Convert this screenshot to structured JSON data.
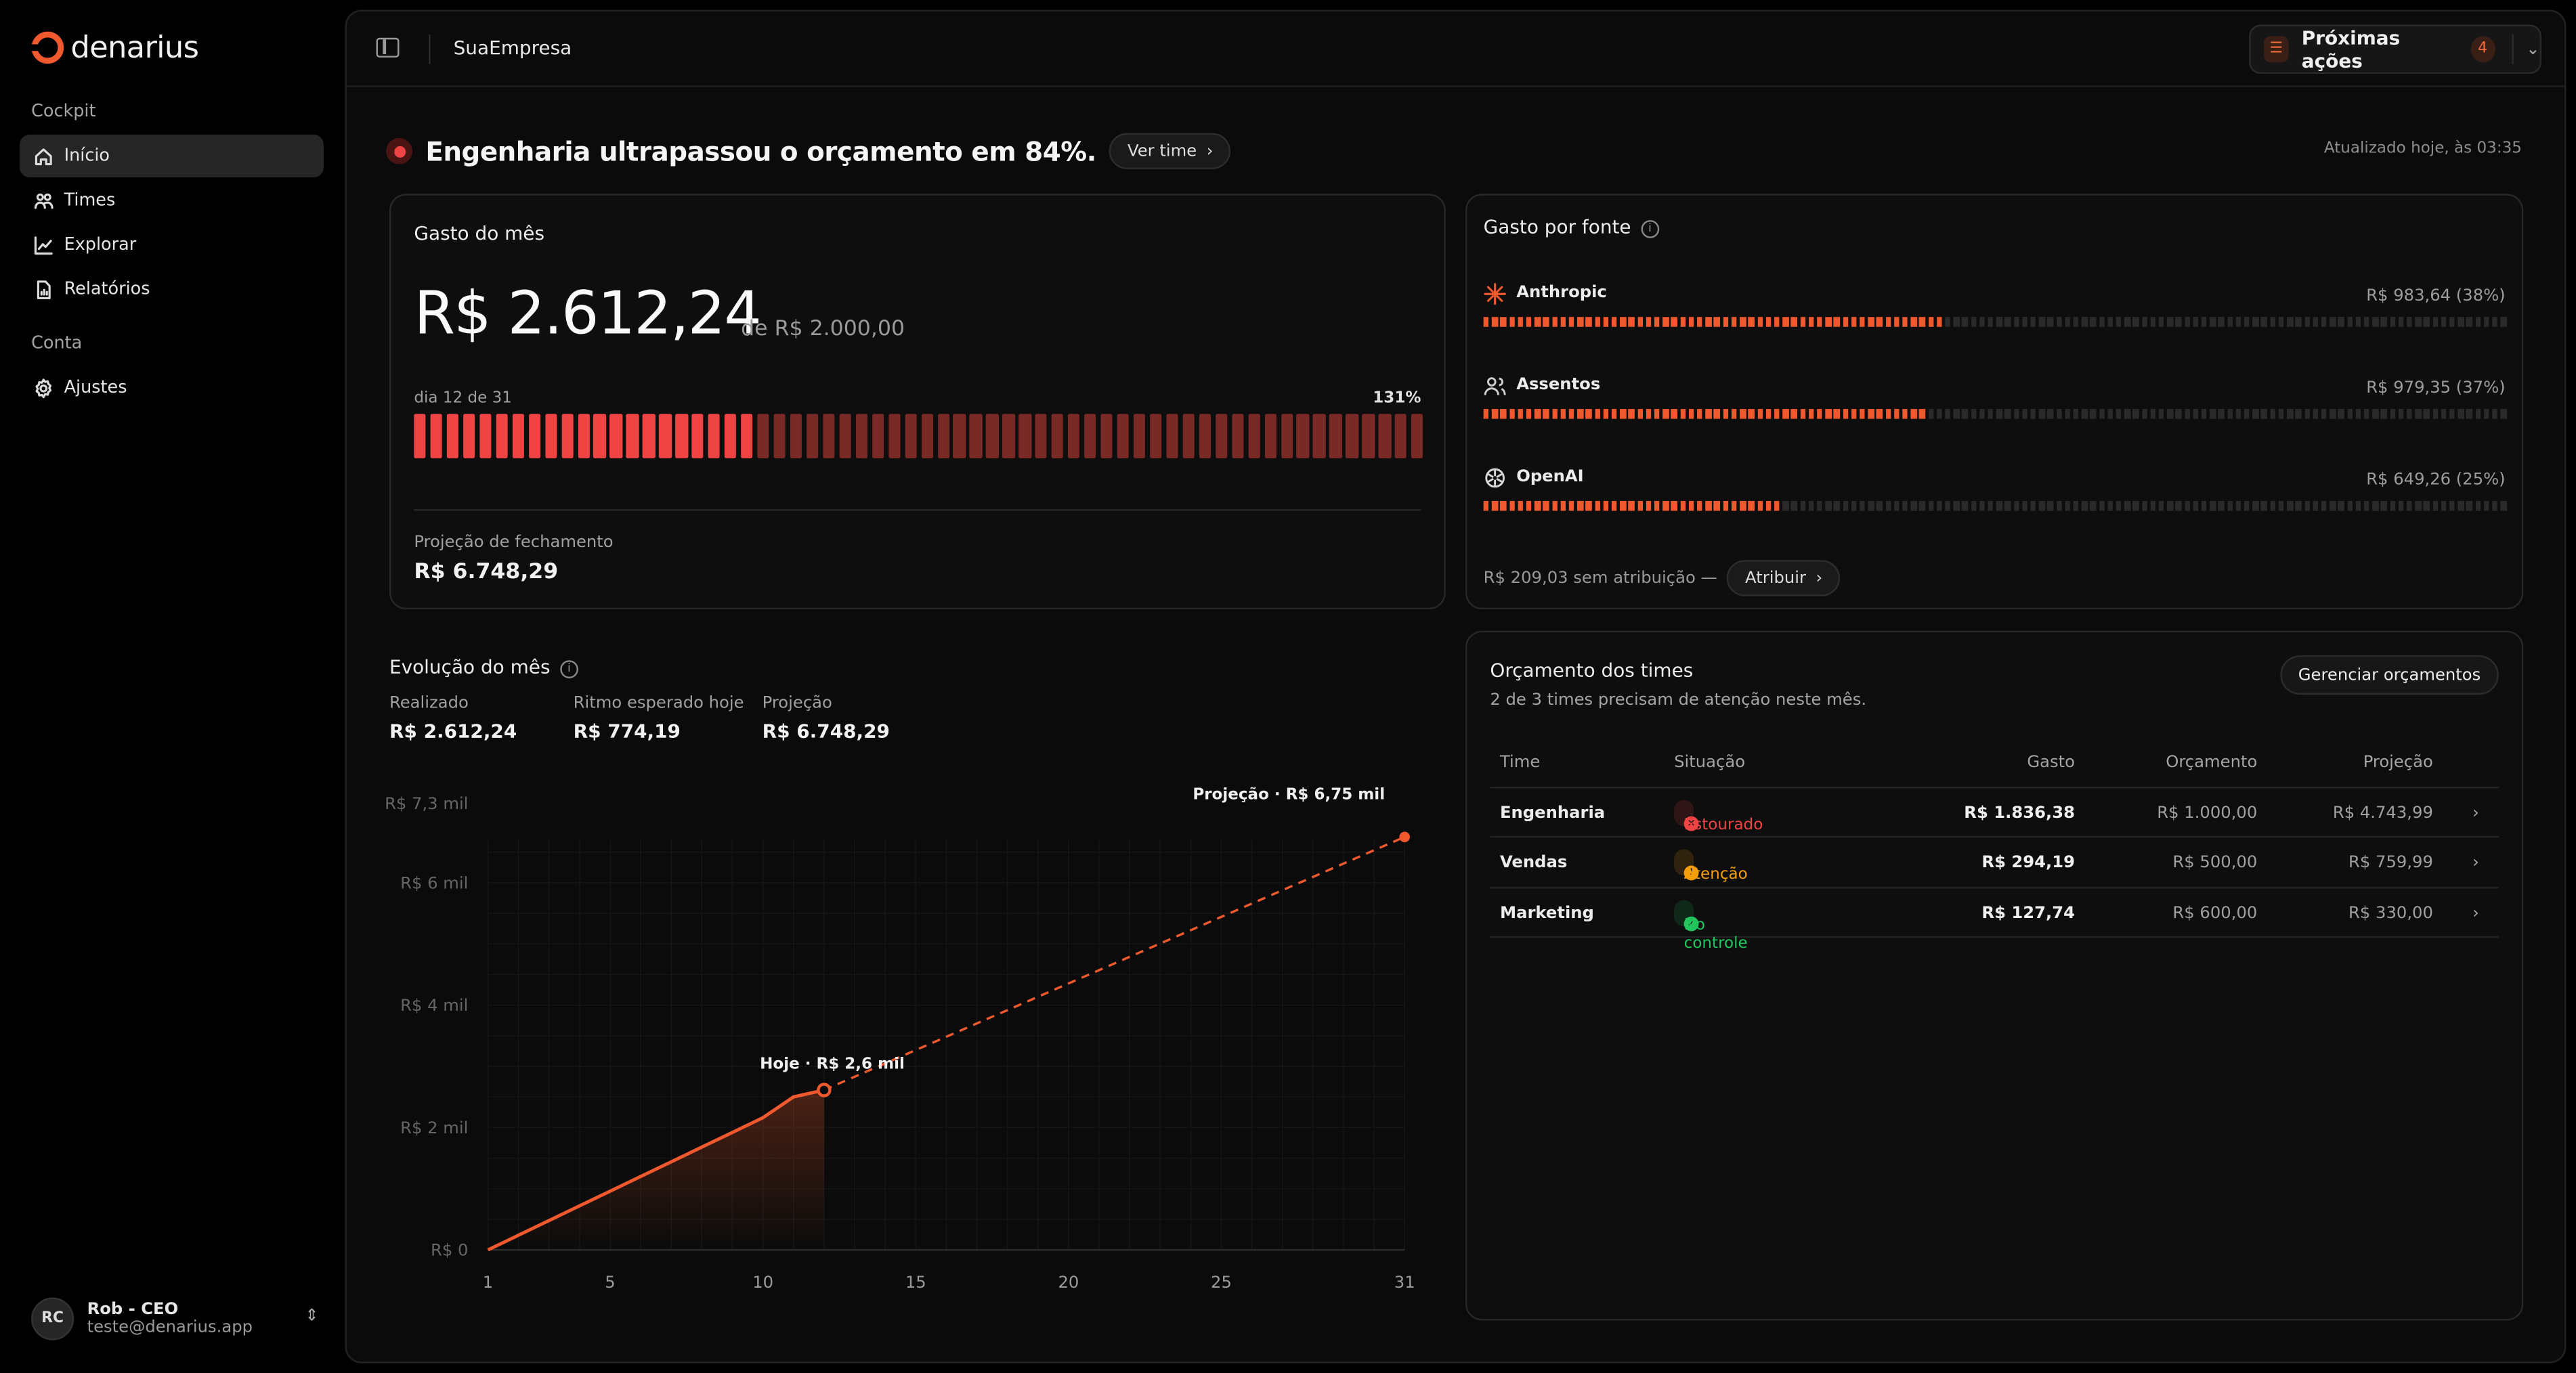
{
  "app": {
    "name": "denarius",
    "company": "SuaEmpresa"
  },
  "sidebar": {
    "section_cockpit": "Cockpit",
    "items": [
      {
        "label": "Início"
      },
      {
        "label": "Times"
      },
      {
        "label": "Explorar"
      },
      {
        "label": "Relatórios"
      }
    ],
    "section_conta": "Conta",
    "settings": {
      "label": "Ajustes"
    },
    "user": {
      "initials": "RC",
      "name": "Rob - CEO",
      "email": "teste@denarius.app"
    }
  },
  "topbar": {
    "next_actions_label": "Próximas ações",
    "next_actions_count": "4"
  },
  "alert": {
    "text": "Engenharia ultrapassou o orçamento em 84%.",
    "button": "Ver time",
    "updated": "Atualizado hoje, às 03:35"
  },
  "month_spend": {
    "title": "Gasto do mês",
    "value": "R$ 2.612,24",
    "budget": "de R$ 2.000,00",
    "day": "dia 12 de 31",
    "percent": "131%",
    "progress": 1.306,
    "projection_label": "Projeção de fechamento",
    "projection_value": "R$ 6.748,29"
  },
  "sources": {
    "title": "Gasto por fonte",
    "items": [
      {
        "name": "Anthropic",
        "value": "R$ 983,64 (38%)",
        "share": 0.38,
        "icon": "anthropic-icon"
      },
      {
        "name": "Assentos",
        "value": "R$ 979,35 (37%)",
        "share": 0.37,
        "icon": "users-icon"
      },
      {
        "name": "OpenAI",
        "value": "R$ 649,26 (25%)",
        "share": 0.25,
        "icon": "openai-icon"
      }
    ],
    "unattributed": "R$ 209,03 sem atribuição —",
    "assign_button": "Atribuir"
  },
  "evolution": {
    "title": "Evolução do mês",
    "kpis": [
      {
        "label": "Realizado",
        "value": "R$ 2.612,24"
      },
      {
        "label": "Ritmo esperado hoje",
        "value": "R$ 774,19"
      },
      {
        "label": "Projeção",
        "value": "R$ 6.748,29"
      }
    ]
  },
  "chart_data": {
    "type": "line",
    "x_ticks": [
      "1",
      "5",
      "10",
      "15",
      "20",
      "25",
      "31"
    ],
    "y_ticks": [
      "R$ 0",
      "R$ 2 mil",
      "R$ 4 mil",
      "R$ 6 mil",
      "R$ 7,3 mil"
    ],
    "xlim": [
      1,
      31
    ],
    "ylim": [
      0,
      7300
    ],
    "series": [
      {
        "name": "Realizado",
        "x": [
          1,
          2,
          3,
          4,
          5,
          6,
          7,
          8,
          9,
          10,
          11,
          12
        ],
        "y": [
          0,
          240,
          480,
          720,
          960,
          1200,
          1440,
          1680,
          1920,
          2160,
          2500,
          2612
        ]
      },
      {
        "name": "Projeção",
        "x": [
          12,
          31
        ],
        "y": [
          2612,
          6748
        ]
      }
    ],
    "annotations": {
      "today": "Hoje · R$ 2,6 mil",
      "projection": "Projeção · R$ 6,75 mil"
    },
    "colors": {
      "line": "#f0592e"
    }
  },
  "budgets": {
    "title": "Orçamento dos times",
    "subtitle": "2 de 3 times precisam de atenção neste mês.",
    "manage_button": "Gerenciar orçamentos",
    "columns": [
      "Time",
      "Situação",
      "Gasto",
      "Orçamento",
      "Projeção"
    ],
    "rows": [
      {
        "team": "Engenharia",
        "status": "Estourado",
        "status_color": "#ef4444",
        "spent": "R$ 1.836,38",
        "budget": "R$ 1.000,00",
        "projection": "R$ 4.743,99"
      },
      {
        "team": "Vendas",
        "status": "Atenção",
        "status_color": "#f59e0b",
        "spent": "R$ 294,19",
        "budget": "R$ 500,00",
        "projection": "R$ 759,99"
      },
      {
        "team": "Marketing",
        "status": "No controle",
        "status_color": "#22c55e",
        "spent": "R$ 127,74",
        "budget": "R$ 600,00",
        "projection": "R$ 330,00"
      }
    ]
  },
  "colors": {
    "accent": "#f0592e",
    "danger": "#ef4444",
    "warning": "#f59e0b",
    "success": "#22c55e"
  }
}
